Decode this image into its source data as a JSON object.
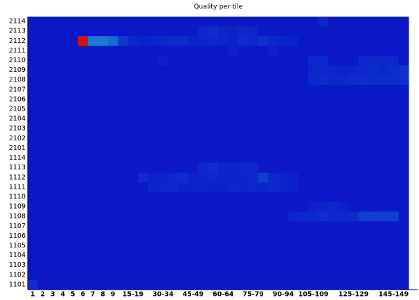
{
  "chart_data": {
    "type": "heatmap",
    "title": "Quality per tile",
    "categories": [
      "1",
      "2",
      "3",
      "4",
      "5",
      "6",
      "7",
      "8",
      "9",
      null,
      "15-19",
      null,
      null,
      "30-34",
      null,
      null,
      "45-49",
      null,
      null,
      "60-64",
      null,
      null,
      "75-79",
      null,
      null,
      "90-94",
      null,
      null,
      "105-109",
      null,
      null,
      null,
      "125-129",
      null,
      null,
      null,
      "145-149",
      null
    ],
    "rows": [
      "2114",
      "2113",
      "2112",
      "2111",
      "2110",
      "2109",
      "2108",
      "2107",
      "2106",
      "2105",
      "2104",
      "2103",
      "2102",
      "2101",
      "1114",
      "1113",
      "1112",
      "1111",
      "1110",
      "1109",
      "1108",
      "1107",
      "1106",
      "1105",
      "1104",
      "1103",
      "1102",
      "1101"
    ],
    "values": [
      [
        0,
        0,
        0,
        0,
        0,
        0,
        0,
        0,
        0,
        0,
        0,
        0,
        0,
        0,
        0,
        0,
        0,
        0,
        0,
        0,
        0,
        0,
        0,
        0,
        0,
        0,
        0,
        0,
        0,
        0.5,
        0,
        0,
        0,
        0,
        0,
        0,
        0,
        0
      ],
      [
        0,
        0,
        0,
        0,
        0,
        0,
        0,
        0,
        0,
        0,
        0,
        0,
        0,
        0,
        0,
        0,
        0,
        0.5,
        0.6,
        0.4,
        0.3,
        0.5,
        0.4,
        0,
        0,
        0,
        0,
        0,
        0,
        0,
        0,
        0,
        0,
        0,
        0,
        0,
        0,
        0
      ],
      [
        0,
        0,
        0,
        0,
        0,
        10,
        3,
        3,
        2.5,
        1,
        0.5,
        0.3,
        0.4,
        0.5,
        0.6,
        0.6,
        0.3,
        0.4,
        0.5,
        0.4,
        0.3,
        0.6,
        0.5,
        0.8,
        0.5,
        0.4,
        0.3,
        0,
        0,
        0,
        0,
        0,
        0,
        0,
        0,
        0,
        0,
        0
      ],
      [
        0,
        0,
        0,
        0,
        0,
        0,
        0,
        0,
        0,
        0,
        0,
        0,
        0,
        0,
        0,
        0,
        0,
        0,
        0,
        0,
        0.3,
        0,
        0,
        0,
        0.3,
        0,
        0,
        0,
        0,
        0,
        0,
        0,
        0,
        0,
        0,
        0,
        0,
        0
      ],
      [
        0,
        0,
        0,
        0,
        0,
        0,
        0,
        0,
        0,
        0,
        0,
        0,
        0,
        0.3,
        0,
        0,
        0,
        0,
        0,
        0,
        0,
        0,
        0,
        0,
        0,
        0,
        0,
        0,
        0.5,
        0.5,
        0,
        0,
        0,
        0.5,
        0.5,
        0.5,
        0.5,
        0
      ],
      [
        0,
        0,
        0,
        0,
        0,
        0,
        0,
        0,
        0,
        0,
        0,
        0,
        0,
        0,
        0,
        0,
        0,
        0,
        0,
        0,
        0,
        0,
        0,
        0,
        0,
        0,
        0,
        0,
        0.4,
        0.5,
        0.4,
        0.3,
        0.4,
        0.5,
        0.6,
        0.5,
        0.6,
        0.8
      ],
      [
        0,
        0,
        0,
        0,
        0,
        0,
        0,
        0,
        0,
        0,
        0,
        0,
        0,
        0,
        0,
        0,
        0,
        0,
        0,
        0,
        0,
        0,
        0,
        0,
        0,
        0,
        0,
        0,
        0.5,
        0.6,
        0.5,
        0.5,
        0.6,
        0.7,
        0.6,
        0.7,
        0.6,
        0.7
      ],
      [
        0,
        0,
        0,
        0,
        0,
        0,
        0,
        0,
        0,
        0,
        0,
        0,
        0,
        0,
        0,
        0,
        0,
        0,
        0,
        0,
        0,
        0,
        0,
        0,
        0,
        0,
        0,
        0,
        0,
        0,
        0,
        0,
        0,
        0,
        0,
        0,
        0,
        0
      ],
      [
        0,
        0,
        0,
        0,
        0,
        0,
        0,
        0,
        0,
        0,
        0,
        0,
        0,
        0,
        0,
        0,
        0,
        0,
        0,
        0,
        0,
        0,
        0,
        0,
        0,
        0,
        0,
        0,
        0,
        0,
        0,
        0,
        0,
        0,
        0,
        0,
        0,
        0
      ],
      [
        0,
        0,
        0,
        0,
        0,
        0,
        0,
        0,
        0,
        0,
        0,
        0,
        0,
        0,
        0,
        0,
        0,
        0,
        0,
        0,
        0,
        0,
        0,
        0,
        0,
        0,
        0,
        0,
        0,
        0,
        0,
        0,
        0,
        0,
        0,
        0,
        0,
        0
      ],
      [
        0,
        0,
        0,
        0,
        0,
        0,
        0,
        0,
        0,
        0,
        0,
        0,
        0,
        0,
        0,
        0,
        0,
        0,
        0,
        0,
        0,
        0,
        0,
        0,
        0,
        0,
        0,
        0,
        0,
        0,
        0,
        0,
        0,
        0,
        0,
        0,
        0,
        0
      ],
      [
        0,
        0,
        0,
        0,
        0,
        0,
        0,
        0,
        0,
        0,
        0,
        0,
        0,
        0,
        0,
        0,
        0,
        0,
        0,
        0,
        0,
        0,
        0,
        0,
        0,
        0,
        0,
        0,
        0,
        0,
        0,
        0,
        0,
        0,
        0,
        0,
        0,
        0
      ],
      [
        0,
        0,
        0,
        0,
        0,
        0,
        0,
        0,
        0,
        0,
        0,
        0,
        0,
        0,
        0,
        0,
        0,
        0,
        0,
        0,
        0,
        0,
        0,
        0,
        0,
        0,
        0,
        0,
        0,
        0,
        0,
        0,
        0,
        0,
        0,
        0,
        0,
        0
      ],
      [
        0,
        0,
        0,
        0,
        0,
        0,
        0,
        0,
        0,
        0,
        0,
        0,
        0,
        0,
        0,
        0,
        0,
        0,
        0,
        0,
        0,
        0,
        0,
        0,
        0,
        0,
        0,
        0,
        0,
        0,
        0,
        0,
        0,
        0,
        0,
        0,
        0,
        0
      ],
      [
        0,
        0,
        0,
        0,
        0,
        0,
        0,
        0,
        0,
        0,
        0,
        0,
        0,
        0,
        0,
        0,
        0,
        0,
        0,
        0,
        0,
        0,
        0,
        0,
        0,
        0,
        0,
        0,
        0,
        0,
        0,
        0,
        0,
        0,
        0,
        0,
        0,
        0
      ],
      [
        0,
        0,
        0,
        0,
        0,
        0,
        0,
        0,
        0,
        0,
        0,
        0,
        0,
        0,
        0,
        0,
        0,
        0.5,
        0.7,
        0.4,
        0.4,
        0.5,
        0.5,
        0,
        0,
        0,
        0,
        0,
        0,
        0,
        0,
        0,
        0,
        0,
        0,
        0,
        0,
        0
      ],
      [
        0,
        0,
        0,
        0,
        0,
        0,
        0,
        0,
        0,
        0,
        0,
        0.6,
        0.3,
        0.4,
        0.5,
        0.6,
        0.3,
        0.4,
        0.5,
        0.4,
        0.3,
        0.4,
        0.5,
        1.2,
        0.5,
        0.4,
        0.3,
        0,
        0,
        0,
        0,
        0,
        0,
        0,
        0,
        0,
        0,
        0
      ],
      [
        0,
        0,
        0,
        0,
        0,
        0,
        0,
        0,
        0,
        0,
        0,
        0,
        0.4,
        0.5,
        0.5,
        0.3,
        0.3,
        0.4,
        0.3,
        0.3,
        0.5,
        0.4,
        0.5,
        0.4,
        0.5,
        0.4,
        0.3,
        0,
        0,
        0,
        0,
        0,
        0,
        0,
        0,
        0,
        0,
        0
      ],
      [
        0,
        0,
        0,
        0,
        0,
        0,
        0,
        0,
        0,
        0,
        0,
        0,
        0,
        0,
        0,
        0,
        0,
        0,
        0,
        0,
        0,
        0,
        0,
        0,
        0,
        0,
        0,
        0,
        0,
        0,
        0,
        0,
        0,
        0,
        0,
        0,
        0,
        0
      ],
      [
        0,
        0,
        0,
        0,
        0,
        0,
        0,
        0,
        0,
        0,
        0,
        0,
        0,
        0,
        0,
        0,
        0,
        0,
        0,
        0,
        0,
        0,
        0,
        0,
        0,
        0,
        0,
        0,
        0.3,
        0.4,
        0.5,
        0.3,
        0,
        0,
        0,
        0,
        0,
        0
      ],
      [
        0,
        0,
        0,
        0,
        0,
        0,
        0,
        0,
        0,
        0,
        0,
        0,
        0,
        0,
        0,
        0,
        0,
        0,
        0,
        0,
        0,
        0,
        0,
        0,
        0,
        0,
        0.4,
        0.5,
        0.5,
        0.7,
        0.5,
        0.5,
        0.6,
        1.2,
        1.3,
        1.2,
        1.2,
        0
      ],
      [
        0,
        0,
        0,
        0,
        0,
        0,
        0,
        0,
        0,
        0,
        0,
        0,
        0,
        0,
        0,
        0,
        0,
        0,
        0,
        0,
        0,
        0,
        0,
        0,
        0,
        0,
        0,
        0,
        0,
        0,
        0,
        0,
        0,
        0,
        0,
        0,
        0,
        0
      ],
      [
        0,
        0,
        0,
        0,
        0,
        0,
        0,
        0,
        0,
        0,
        0,
        0,
        0,
        0,
        0,
        0,
        0,
        0,
        0,
        0,
        0,
        0,
        0,
        0,
        0,
        0,
        0,
        0,
        0,
        0,
        0,
        0,
        0,
        0,
        0,
        0,
        0,
        0
      ],
      [
        0,
        0,
        0,
        0,
        0,
        0,
        0,
        0,
        0,
        0,
        0,
        0,
        0,
        0,
        0,
        0,
        0,
        0,
        0,
        0,
        0,
        0,
        0,
        0,
        0,
        0,
        0,
        0,
        0,
        0,
        0,
        0,
        0,
        0,
        0,
        0,
        0,
        0
      ],
      [
        0,
        0,
        0,
        0,
        0,
        0,
        0,
        0,
        0,
        0,
        0,
        0,
        0,
        0,
        0,
        0,
        0,
        0,
        0,
        0,
        0,
        0,
        0,
        0,
        0,
        0,
        0,
        0,
        0,
        0,
        0,
        0,
        0,
        0,
        0,
        0,
        0,
        0
      ],
      [
        0,
        0,
        0,
        0,
        0,
        0,
        0,
        0,
        0,
        0,
        0,
        0,
        0,
        0,
        0,
        0,
        0,
        0,
        0,
        0,
        0,
        0,
        0,
        0,
        0,
        0,
        0,
        0,
        0,
        0,
        0,
        0,
        0,
        0,
        0,
        0,
        0,
        0
      ],
      [
        0,
        0,
        0,
        0,
        0,
        0,
        0,
        0,
        0,
        0,
        0,
        0,
        0,
        0,
        0,
        0,
        0,
        0,
        0,
        0,
        0,
        0,
        0,
        0,
        0,
        0,
        0,
        0,
        0,
        0,
        0,
        0,
        0,
        0,
        0,
        0,
        0,
        0
      ],
      [
        0.6,
        0,
        0,
        0,
        0,
        0,
        0,
        0,
        0,
        0,
        0,
        0,
        0,
        0,
        0,
        0,
        0,
        0,
        0,
        0,
        0,
        0,
        0,
        0,
        0,
        0,
        0,
        0,
        0,
        0,
        0,
        0,
        0,
        0,
        0,
        0,
        0,
        0
      ]
    ],
    "color_stops": [
      [
        0,
        "#0a18c8"
      ],
      [
        3,
        "#1a7ad4"
      ],
      [
        10,
        "#d81010"
      ]
    ]
  }
}
